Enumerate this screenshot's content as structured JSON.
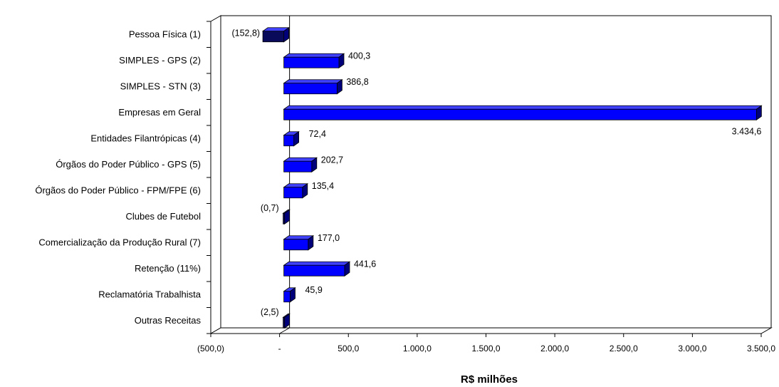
{
  "chart_data": {
    "type": "bar",
    "orientation": "horizontal",
    "three_d": true,
    "xlabel": "R$ milhões",
    "xlim": [
      -500,
      3500
    ],
    "x_ticks": [
      -500,
      0,
      500,
      1000,
      1500,
      2000,
      2500,
      3000,
      3500
    ],
    "x_tick_labels": [
      "(500,0)",
      "-",
      "500,0",
      "1.000,0",
      "1.500,0",
      "2.000,0",
      "2.500,0",
      "3.000,0",
      "3.500,0"
    ],
    "grid": false,
    "legend": "none",
    "colors": {
      "positive": "#0000ff",
      "negative": "#0a0a5a",
      "top_face": "#4040ff",
      "side_face": "#00007a"
    },
    "categories": [
      "Pessoa Física (1)",
      "SIMPLES - GPS (2)",
      "SIMPLES - STN (3)",
      "Empresas em Geral",
      "Entidades Filantrópicas (4)",
      "Órgãos do Poder Público - GPS (5)",
      "Órgãos do Poder Público - FPM/FPE (6)",
      "Clubes de Futebol",
      "Comercialização da Produção Rural (7)",
      "Retenção (11%)",
      "Reclamatória Trabalhista",
      "Outras Receitas"
    ],
    "values": [
      -152.8,
      400.3,
      386.8,
      3434.6,
      72.4,
      202.7,
      135.4,
      -0.7,
      177.0,
      441.6,
      45.9,
      -2.5
    ],
    "value_labels": [
      "(152,8)",
      "400,3",
      "386,8",
      "3.434,6",
      "72,4",
      "202,7",
      "135,4",
      "(0,7)",
      "177,0",
      "441,6",
      "45,9",
      "(2,5)"
    ]
  }
}
